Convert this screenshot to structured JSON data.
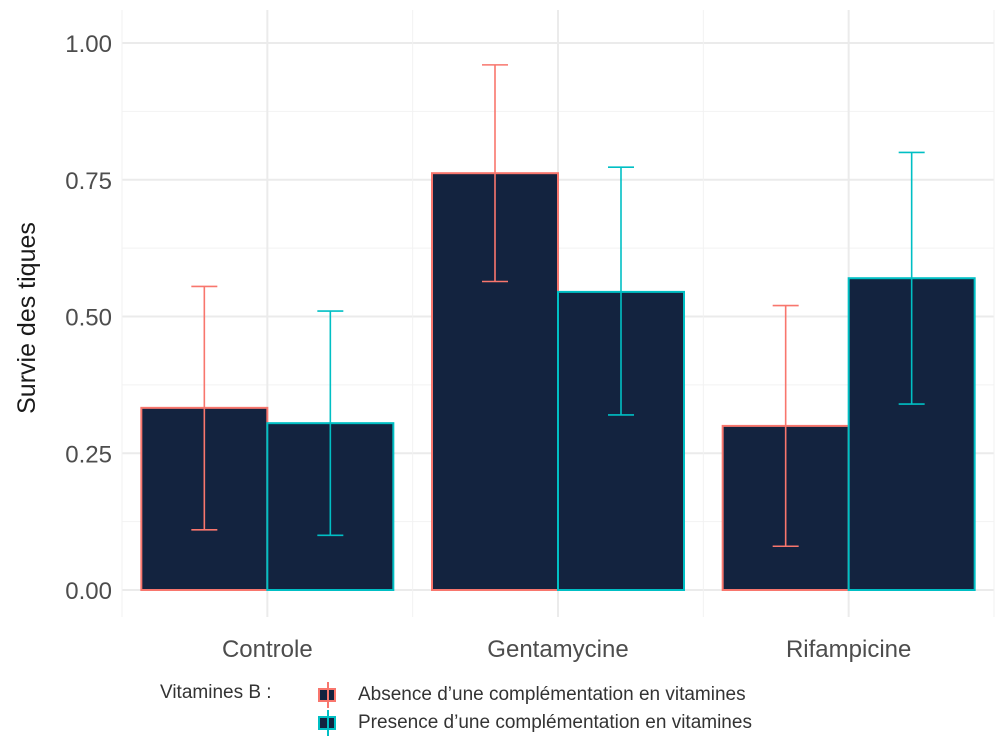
{
  "chart_data": {
    "type": "bar",
    "categories": [
      "Controle",
      "Gentamycine",
      "Rifampicine"
    ],
    "ylabel": "Survie des tiques",
    "xlabel": "",
    "ylim": [
      0,
      1.05
    ],
    "yticks": [
      "0.00",
      "0.25",
      "0.50",
      "0.75",
      "1.00"
    ],
    "grid": true,
    "fill_color": "#13233f",
    "series": [
      {
        "name": "Absence d’une complémentation en vitamines",
        "color": "#f8766d",
        "values": [
          0.333,
          0.762,
          0.3
        ],
        "error_low": [
          0.11,
          0.564,
          0.08
        ],
        "error_high": [
          0.555,
          0.96,
          0.52
        ]
      },
      {
        "name": "Presence d’une complémentation en vitamines",
        "color": "#00bfc4",
        "values": [
          0.305,
          0.545,
          0.57
        ],
        "error_low": [
          0.1,
          0.32,
          0.34
        ],
        "error_high": [
          0.51,
          0.773,
          0.8
        ]
      }
    ],
    "legend": {
      "title": "Vitamines B :",
      "position": "bottom"
    }
  }
}
